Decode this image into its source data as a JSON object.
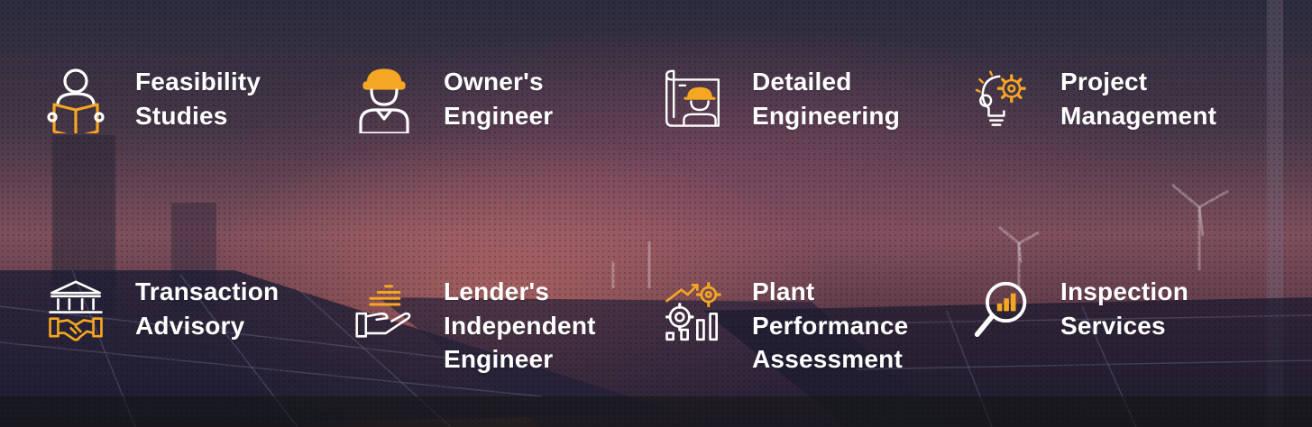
{
  "services": [
    {
      "label": "Feasibility\nStudies",
      "icon": "reading-person-icon"
    },
    {
      "label": "Owner's\nEngineer",
      "icon": "engineer-helmet-icon"
    },
    {
      "label": "Detailed\nEngineering",
      "icon": "blueprint-engineer-icon"
    },
    {
      "label": "Project\nManagement",
      "icon": "gear-lightbulb-icon"
    },
    {
      "label": "Transaction\nAdvisory",
      "icon": "building-handshake-icon"
    },
    {
      "label": "Lender's\nIndependent\nEngineer",
      "icon": "hand-coins-icon"
    },
    {
      "label": "Plant\nPerformance\nAssessment",
      "icon": "gear-growth-chart-icon"
    },
    {
      "label": "Inspection\nServices",
      "icon": "magnifier-chart-icon"
    }
  ],
  "colors": {
    "accent": "#f5a623",
    "text": "#ffffff"
  }
}
